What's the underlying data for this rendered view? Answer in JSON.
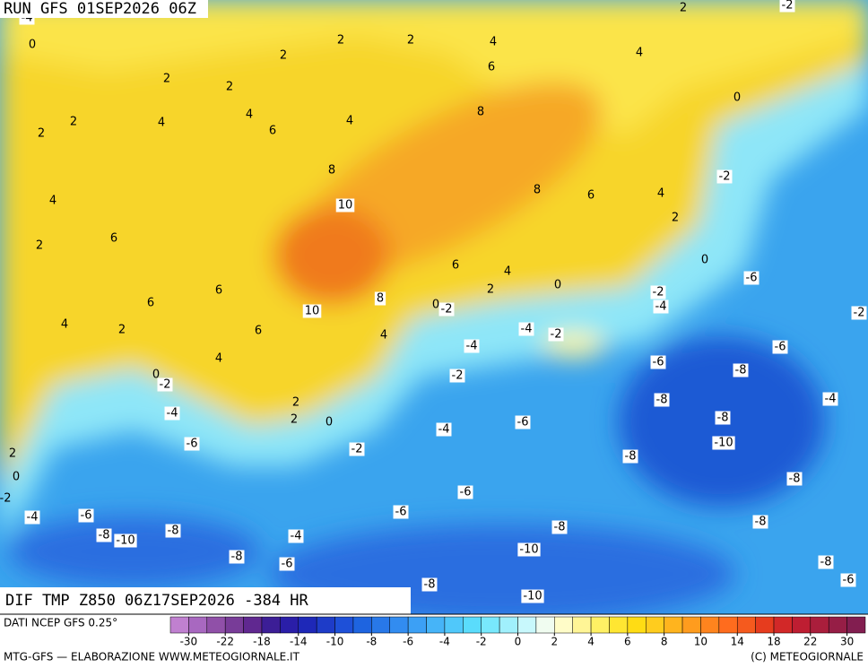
{
  "header": {
    "run": "RUN GFS 01SEP2026 06Z"
  },
  "map": {
    "title": "DIF TMP Z850 06Z17SEP2026 -384 HR",
    "contour_labels": [
      -4,
      0,
      2,
      2,
      4,
      6,
      2,
      2,
      2,
      2,
      2,
      4,
      4,
      4,
      6,
      8,
      4,
      0,
      2,
      -2,
      8,
      10,
      4,
      2,
      6,
      6,
      6,
      10,
      8,
      6,
      4,
      2,
      4,
      8,
      6,
      4,
      2,
      -2,
      0,
      -6,
      6,
      4,
      2,
      0,
      0,
      -2,
      -2,
      -4,
      -2,
      4,
      -4,
      -4,
      -2,
      -6,
      -6,
      -8,
      0,
      -2,
      -2,
      -4,
      -8,
      -8,
      2,
      2,
      0,
      -4,
      -6,
      -4,
      -10,
      -6,
      -2,
      -8,
      2,
      0,
      -8,
      -2,
      -6,
      -6,
      -4,
      -6,
      -8,
      -8,
      -8,
      -8,
      -10,
      -4,
      -10,
      -8,
      -6,
      -8,
      -6,
      -8,
      -10
    ]
  },
  "legend": {
    "colors": [
      "#c080d0",
      "#a868c0",
      "#9050a8",
      "#783c98",
      "#602890",
      "#3c1e96",
      "#2a1ea8",
      "#1e28b8",
      "#1e3cc8",
      "#1e50d8",
      "#1e64e0",
      "#2878e8",
      "#328cf0",
      "#3ca0f5",
      "#46b4f8",
      "#50c8fa",
      "#5adcfc",
      "#78e8fc",
      "#a0f0fc",
      "#c8f8fc",
      "#f0fcf0",
      "#fffcc8",
      "#fff596",
      "#fff064",
      "#ffe632",
      "#ffdc14",
      "#ffcc1e",
      "#ffb41e",
      "#ff9c1e",
      "#ff841e",
      "#ff6c1e",
      "#f55a1e",
      "#e63c1e",
      "#d22828",
      "#be1e32",
      "#aa1e3c",
      "#961e46",
      "#821e50"
    ],
    "ticks": [
      -30,
      -22,
      -18,
      -14,
      -10,
      -8,
      -6,
      -4,
      -2,
      0,
      2,
      4,
      6,
      8,
      10,
      14,
      18,
      22,
      30
    ]
  },
  "footer": {
    "source": "DATI NCEP GFS 0.25°",
    "credit": "MTG-GFS — ELABORAZIONE WWW.METEOGIORNALE.IT",
    "copyright": "(C) METEOGIORNALE"
  }
}
